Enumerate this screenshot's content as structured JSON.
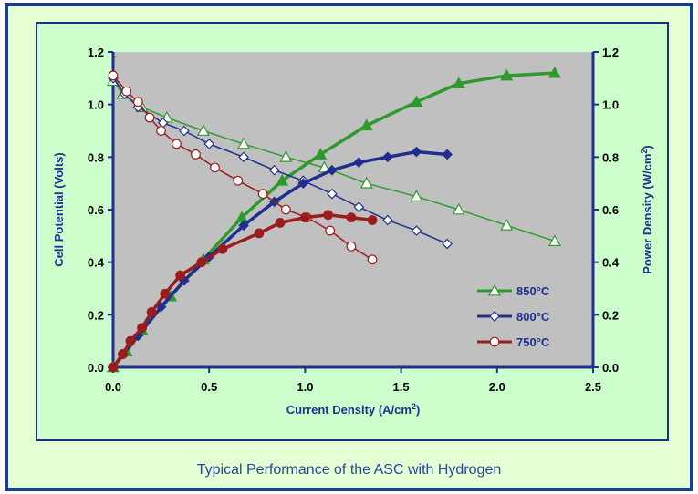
{
  "caption": "Typical Performance of the ASC with Hydrogen",
  "chart_data": {
    "type": "line",
    "title": "",
    "xlabel": "Current Density (A/cm",
    "xlabel_sup": "2",
    "xlabel_end": ")",
    "ylabel_left": "Cell Potential (Volts)",
    "ylabel_right": "Power Density (W/cm",
    "ylabel_right_sup": "2",
    "ylabel_right_end": ")",
    "xlim": [
      0,
      2.5
    ],
    "ylim_left": [
      0,
      1.2
    ],
    "ylim_right": [
      0,
      1.2
    ],
    "x_ticks": [
      "0.0",
      "0.5",
      "1.0",
      "1.5",
      "2.0",
      "2.5"
    ],
    "y_ticks_left": [
      "0.0",
      "0.2",
      "0.4",
      "0.6",
      "0.8",
      "1.0",
      "1.2"
    ],
    "y_ticks_right": [
      "0.0",
      "0.2",
      "0.4",
      "0.6",
      "0.8",
      "1.0",
      "1.2"
    ],
    "legend_position": "lower-right",
    "plot_background": "#c0c0c0",
    "series": [
      {
        "name": "850°C",
        "color": "#2e9a2e",
        "marker": "triangle",
        "voltage": [
          [
            0.0,
            1.09
          ],
          [
            0.05,
            1.04
          ],
          [
            0.15,
            0.99
          ],
          [
            0.28,
            0.95
          ],
          [
            0.47,
            0.9
          ],
          [
            0.68,
            0.85
          ],
          [
            0.9,
            0.8
          ],
          [
            1.1,
            0.76
          ],
          [
            1.32,
            0.7
          ],
          [
            1.58,
            0.65
          ],
          [
            1.8,
            0.6
          ],
          [
            2.05,
            0.54
          ],
          [
            2.3,
            0.48
          ]
        ],
        "power": [
          [
            0.0,
            0.0
          ],
          [
            0.07,
            0.06
          ],
          [
            0.15,
            0.14
          ],
          [
            0.3,
            0.27
          ],
          [
            0.47,
            0.41
          ],
          [
            0.67,
            0.57
          ],
          [
            0.88,
            0.71
          ],
          [
            1.08,
            0.81
          ],
          [
            1.32,
            0.92
          ],
          [
            1.58,
            1.01
          ],
          [
            1.8,
            1.08
          ],
          [
            2.05,
            1.11
          ],
          [
            2.3,
            1.12
          ]
        ]
      },
      {
        "name": "800°C",
        "color": "#1f2f8f",
        "marker": "diamond",
        "voltage": [
          [
            0.0,
            1.1
          ],
          [
            0.06,
            1.04
          ],
          [
            0.13,
            0.99
          ],
          [
            0.26,
            0.93
          ],
          [
            0.37,
            0.9
          ],
          [
            0.5,
            0.85
          ],
          [
            0.68,
            0.8
          ],
          [
            0.84,
            0.75
          ],
          [
            0.99,
            0.71
          ],
          [
            1.14,
            0.66
          ],
          [
            1.28,
            0.61
          ],
          [
            1.43,
            0.56
          ],
          [
            1.58,
            0.52
          ],
          [
            1.74,
            0.47
          ]
        ],
        "power": [
          [
            0.0,
            0.0
          ],
          [
            0.05,
            0.05
          ],
          [
            0.13,
            0.12
          ],
          [
            0.25,
            0.23
          ],
          [
            0.37,
            0.33
          ],
          [
            0.5,
            0.42
          ],
          [
            0.68,
            0.54
          ],
          [
            0.84,
            0.63
          ],
          [
            0.99,
            0.7
          ],
          [
            1.14,
            0.75
          ],
          [
            1.28,
            0.78
          ],
          [
            1.43,
            0.8
          ],
          [
            1.58,
            0.82
          ],
          [
            1.74,
            0.81
          ]
        ]
      },
      {
        "name": "750°C",
        "color": "#9b1c1c",
        "marker": "circle",
        "voltage": [
          [
            0.0,
            1.11
          ],
          [
            0.07,
            1.05
          ],
          [
            0.13,
            1.01
          ],
          [
            0.19,
            0.95
          ],
          [
            0.25,
            0.9
          ],
          [
            0.33,
            0.85
          ],
          [
            0.43,
            0.81
          ],
          [
            0.53,
            0.76
          ],
          [
            0.65,
            0.71
          ],
          [
            0.78,
            0.66
          ],
          [
            0.9,
            0.6
          ],
          [
            1.01,
            0.57
          ],
          [
            1.13,
            0.52
          ],
          [
            1.24,
            0.46
          ],
          [
            1.35,
            0.41
          ]
        ],
        "power": [
          [
            0.0,
            0.0
          ],
          [
            0.05,
            0.05
          ],
          [
            0.09,
            0.1
          ],
          [
            0.15,
            0.15
          ],
          [
            0.2,
            0.21
          ],
          [
            0.27,
            0.28
          ],
          [
            0.35,
            0.35
          ],
          [
            0.46,
            0.4
          ],
          [
            0.57,
            0.45
          ],
          [
            0.76,
            0.51
          ],
          [
            0.87,
            0.55
          ],
          [
            1.0,
            0.57
          ],
          [
            1.12,
            0.58
          ],
          [
            1.24,
            0.57
          ],
          [
            1.35,
            0.56
          ]
        ]
      }
    ]
  }
}
